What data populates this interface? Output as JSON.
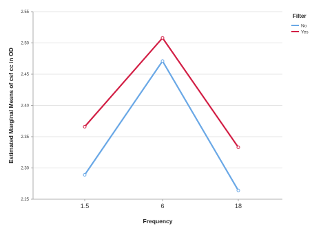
{
  "chart_data": {
    "type": "line",
    "categories": [
      "1.5",
      "6",
      "18"
    ],
    "xlabel": "Frequency",
    "ylabel": "Estimated Marginal Means of csf cc in OD",
    "ylim": [
      2.25,
      2.55
    ],
    "yticks": [
      "2.25",
      "2.30",
      "2.35",
      "2.40",
      "2.45",
      "2.50",
      "2.55"
    ],
    "grid": true,
    "legend": {
      "title": "Filter",
      "placement": "top-right",
      "entries": [
        "No",
        "Yes"
      ]
    },
    "series": [
      {
        "name": "No",
        "values": [
          2.289,
          2.471,
          2.264
        ],
        "color": "#6aa8e6"
      },
      {
        "name": "Yes",
        "values": [
          2.366,
          2.508,
          2.333
        ],
        "color": "#d21f45"
      }
    ]
  }
}
